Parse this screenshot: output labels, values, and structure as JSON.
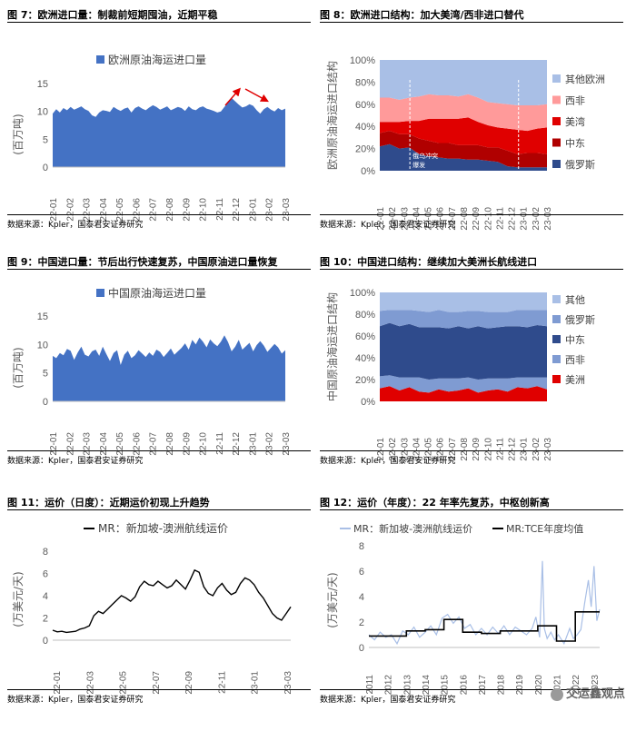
{
  "colors": {
    "blue": "#4472c4",
    "dark_blue": "#2f4b8c",
    "light_blue": "#a9bfe6",
    "mid_blue": "#7f9bd2",
    "red": "#e00000",
    "dark_red": "#b00000",
    "pink_red": "#ff9a9a",
    "black": "#000000",
    "arrow_red": "#e00000"
  },
  "watermark": "交运鑫观点",
  "panels": [
    {
      "title": "图 7：欧洲进口量：制裁前短期囤油，近期平稳",
      "source": "数据来源：Kpler，国泰君安证券研究",
      "chart_data": {
        "type": "area",
        "series": [
          {
            "name": "欧洲原油海运进口量",
            "color": "#4472c4",
            "values": [
              9.6,
              10.4,
              9.8,
              10.6,
              10.2,
              10.8,
              10.3,
              10.6,
              10.9,
              10.4,
              10.1,
              9.3,
              9.0,
              9.8,
              10.2,
              10.1,
              9.9,
              10.8,
              10.4,
              10.1,
              10.5,
              10.7,
              9.8,
              10.6,
              10.9,
              10.5,
              10.2,
              10.7,
              11.1,
              10.8,
              10.3,
              10.6,
              10.9,
              10.2,
              10.5,
              10.8,
              10.6,
              10.1,
              10.9,
              10.4,
              10.2,
              10.7,
              10.9,
              10.5,
              10.3,
              10.1,
              9.8,
              10.0,
              10.8,
              11.6,
              12.4,
              11.8,
              11.2,
              10.7,
              10.9,
              11.3,
              11.0,
              10.2,
              9.6,
              10.4,
              10.8,
              10.3,
              10.0,
              10.6,
              10.2,
              10.5
            ]
          }
        ],
        "x_ticks": [
          "22-01",
          "22-02",
          "22-03",
          "22-04",
          "22-05",
          "22-06",
          "22-07",
          "22-08",
          "22-09",
          "22-10",
          "22-11",
          "22-12",
          "23-01",
          "23-02",
          "23-03"
        ],
        "ylabel": "(百万吨)",
        "ylim": [
          0,
          15
        ],
        "y_ticks": [
          "0",
          "5",
          "10",
          "15"
        ]
      }
    },
    {
      "title": "图 8：欧洲进口结构：加大美湾/西非进口替代",
      "source": "数据来源：Kpler，国泰君安证券研究",
      "annotation": "俄乌冲突\n爆发",
      "chart_data": {
        "type": "area",
        "stacked_percent": true,
        "x_ticks": [
          "22-01",
          "22-02",
          "22-03",
          "22-04",
          "22-05",
          "22-06",
          "22-07",
          "22-08",
          "22-09",
          "22-10",
          "22-11",
          "22-12",
          "23-01",
          "23-02",
          "23-03"
        ],
        "ylabel": "欧洲原油海运进口结构",
        "ylim": [
          0,
          100
        ],
        "y_ticks": [
          "0%",
          "20%",
          "40%",
          "60%",
          "80%",
          "100%"
        ],
        "series": [
          {
            "name": "俄罗斯",
            "color": "#2f4b8c",
            "values": [
              22,
              24,
              20,
              21,
              15,
              13,
              12,
              11,
              11,
              10,
              10,
              9,
              8,
              4,
              3,
              3,
              3,
              3
            ]
          },
          {
            "name": "中东",
            "color": "#b00000",
            "values": [
              12,
              12,
              13,
              12,
              14,
              14,
              13,
              14,
              12,
              13,
              13,
              12,
              13,
              14,
              12,
              13,
              13,
              12
            ]
          },
          {
            "name": "美湾",
            "color": "#e00000",
            "values": [
              10,
              8,
              11,
              12,
              16,
              20,
              22,
              22,
              24,
              25,
              21,
              20,
              18,
              20,
              22,
              20,
              22,
              24
            ]
          },
          {
            "name": "西非",
            "color": "#ff9a9a",
            "values": [
              22,
              22,
              20,
              21,
              22,
              22,
              21,
              21,
              20,
              21,
              22,
              21,
              22,
              22,
              22,
              23,
              21,
              21
            ]
          },
          {
            "name": "其他欧洲",
            "color": "#a9bfe6",
            "values": [
              34,
              34,
              36,
              34,
              33,
              31,
              32,
              32,
              33,
              31,
              34,
              38,
              39,
              40,
              41,
              41,
              41,
              40
            ]
          }
        ]
      }
    },
    {
      "title": "图 9：中国进口量：节后出行快速复苏，中国原油进口量恢复",
      "source": "数据来源：Kpler，国泰君安证券研究",
      "chart_data": {
        "type": "area",
        "series": [
          {
            "name": "中国原油海运进口量",
            "color": "#4472c4",
            "values": [
              8.0,
              7.6,
              8.5,
              8.1,
              9.2,
              8.9,
              7.3,
              8.6,
              9.6,
              8.2,
              7.9,
              8.8,
              9.1,
              8.0,
              9.6,
              8.3,
              7.1,
              8.5,
              9.0,
              6.4,
              8.2,
              8.9,
              7.6,
              8.1,
              9.0,
              8.4,
              7.8,
              8.6,
              8.0,
              9.1,
              8.7,
              7.8,
              8.5,
              9.3,
              8.2,
              8.8,
              9.4,
              10.2,
              9.1,
              10.8,
              10.0,
              11.2,
              10.5,
              9.5,
              10.9,
              10.2,
              9.7,
              10.5,
              11.6,
              10.4,
              8.8,
              9.6,
              10.8,
              9.1,
              9.7,
              10.3,
              8.8,
              9.9,
              10.6,
              9.8,
              8.7,
              9.4,
              10.1,
              9.5,
              8.4,
              9.0
            ]
          }
        ],
        "x_ticks": [
          "22-01",
          "22-02",
          "22-03",
          "22-04",
          "22-05",
          "22-06",
          "22-07",
          "22-08",
          "22-09",
          "22-10",
          "22-11",
          "22-12",
          "23-01",
          "23-02",
          "23-03"
        ],
        "ylabel": "(百万吨)",
        "ylim": [
          0,
          15
        ],
        "y_ticks": [
          "0",
          "5",
          "10",
          "15"
        ]
      }
    },
    {
      "title": "图 10：中国进口结构：继续加大美洲长航线进口",
      "source": "数据来源：Kpler，国泰君安证券研究",
      "chart_data": {
        "type": "area",
        "stacked_percent": true,
        "x_ticks": [
          "22-01",
          "22-02",
          "22-03",
          "22-04",
          "22-05",
          "22-06",
          "22-07",
          "22-08",
          "22-09",
          "22-10",
          "22-11",
          "22-12",
          "23-01",
          "23-02",
          "23-03"
        ],
        "ylabel": "中国原油海运进口结构",
        "ylim": [
          0,
          100
        ],
        "y_ticks": [
          "0%",
          "20%",
          "40%",
          "60%",
          "80%",
          "100%"
        ],
        "series": [
          {
            "name": "美洲",
            "color": "#e00000",
            "values": [
              12,
              14,
              10,
              13,
              9,
              8,
              11,
              9,
              10,
              12,
              8,
              10,
              11,
              9,
              13,
              12,
              14,
              11
            ]
          },
          {
            "name": "西非",
            "color": "#7f9bd2",
            "values": [
              11,
              10,
              12,
              9,
              13,
              12,
              10,
              12,
              11,
              10,
              12,
              11,
              10,
              12,
              9,
              10,
              8,
              11
            ]
          },
          {
            "name": "中东",
            "color": "#2f4b8c",
            "values": [
              46,
              48,
              47,
              49,
              46,
              48,
              47,
              46,
              48,
              45,
              49,
              46,
              47,
              48,
              47,
              46,
              48,
              47
            ]
          },
          {
            "name": "俄罗斯",
            "color": "#7f9bd2",
            "values": [
              14,
              12,
              15,
              13,
              15,
              14,
              16,
              15,
              13,
              16,
              14,
              15,
              14,
              13,
              15,
              16,
              14,
              15
            ]
          },
          {
            "name": "其他",
            "color": "#a9bfe6",
            "values": [
              17,
              16,
              16,
              16,
              17,
              18,
              16,
              18,
              18,
              17,
              17,
              18,
              18,
              18,
              16,
              16,
              16,
              16
            ]
          }
        ]
      }
    },
    {
      "title": "图 11：运价（日度）：近期运价初现上升趋势",
      "source": "数据来源：Kpler，国泰君安证券研究",
      "chart_data": {
        "type": "line",
        "series": [
          {
            "name": "MR：新加坡-澳洲航线运价",
            "color": "#000000",
            "values": [
              0.9,
              0.75,
              0.8,
              0.7,
              0.75,
              0.8,
              1.0,
              1.1,
              1.3,
              2.2,
              2.6,
              2.4,
              2.8,
              3.2,
              3.6,
              4.0,
              3.8,
              3.5,
              3.9,
              4.8,
              5.3,
              5.0,
              4.9,
              5.3,
              5.0,
              4.7,
              4.9,
              5.4,
              5.0,
              4.6,
              5.4,
              6.3,
              6.1,
              4.8,
              4.2,
              4.0,
              4.7,
              5.1,
              4.5,
              4.1,
              4.3,
              5.1,
              5.6,
              5.4,
              5.0,
              4.3,
              3.8,
              3.1,
              2.4,
              2.0,
              1.8,
              2.4,
              3.0
            ]
          }
        ],
        "x_ticks": [
          "22-01",
          "22-03",
          "22-05",
          "22-07",
          "22-09",
          "22-11",
          "23-01",
          "23-03"
        ],
        "ylabel": "(万美元/天)",
        "ylim": [
          0,
          8
        ],
        "y_ticks": [
          "0",
          "2",
          "4",
          "6",
          "8"
        ]
      }
    },
    {
      "title": "图 12：运价（年度）：22 年率先复苏，中枢创新高",
      "source": "数据来源：Kpler，国泰君安证券研究",
      "chart_data": {
        "type": "line",
        "x_range": [
          2011,
          2023.3
        ],
        "series": [
          {
            "name": "MR：新加坡-澳洲航线运价",
            "color": "#a9bfe6",
            "x": [
              2011.0,
              2011.3,
              2011.6,
              2011.9,
              2012.2,
              2012.5,
              2012.8,
              2013.1,
              2013.4,
              2013.7,
              2014.0,
              2014.3,
              2014.6,
              2014.9,
              2015.2,
              2015.5,
              2015.8,
              2016.1,
              2016.4,
              2016.7,
              2017.0,
              2017.3,
              2017.6,
              2017.9,
              2018.2,
              2018.5,
              2018.8,
              2019.1,
              2019.4,
              2019.7,
              2019.9,
              2020.1,
              2020.25,
              2020.35,
              2020.5,
              2020.7,
              2020.9,
              2021.1,
              2021.4,
              2021.7,
              2021.9,
              2022.1,
              2022.3,
              2022.5,
              2022.7,
              2022.85,
              2023.0,
              2023.15,
              2023.3
            ],
            "values": [
              1.0,
              0.6,
              1.2,
              0.8,
              1.0,
              0.3,
              1.3,
              1.0,
              1.6,
              0.8,
              1.2,
              1.7,
              1.0,
              2.3,
              2.6,
              1.9,
              2.4,
              1.5,
              1.8,
              1.0,
              1.5,
              1.0,
              1.6,
              1.1,
              1.7,
              1.0,
              1.6,
              1.3,
              1.0,
              1.5,
              2.4,
              0.8,
              6.8,
              1.5,
              0.7,
              1.2,
              0.6,
              1.0,
              0.3,
              1.5,
              0.7,
              1.0,
              1.4,
              3.5,
              5.3,
              3.2,
              6.4,
              2.1,
              3.0
            ]
          },
          {
            "name": "MR:TCE年度均值",
            "color": "#000000",
            "step": true,
            "x": [
              2011,
              2012,
              2013,
              2014,
              2015,
              2016,
              2017,
              2018,
              2019,
              2020,
              2021,
              2022,
              2023
            ],
            "values": [
              0.9,
              0.9,
              1.3,
              1.4,
              2.2,
              1.2,
              1.1,
              1.3,
              1.3,
              1.7,
              0.5,
              2.8,
              2.8
            ]
          }
        ],
        "x_ticks": [
          "2011",
          "2012",
          "2013",
          "2014",
          "2015",
          "2016",
          "2017",
          "2018",
          "2019",
          "2020",
          "2021",
          "2022",
          "2023"
        ],
        "ylabel": "(万美元/天)",
        "ylim": [
          0,
          8
        ],
        "y_ticks": [
          "0",
          "2",
          "4",
          "6",
          "8"
        ]
      }
    }
  ]
}
